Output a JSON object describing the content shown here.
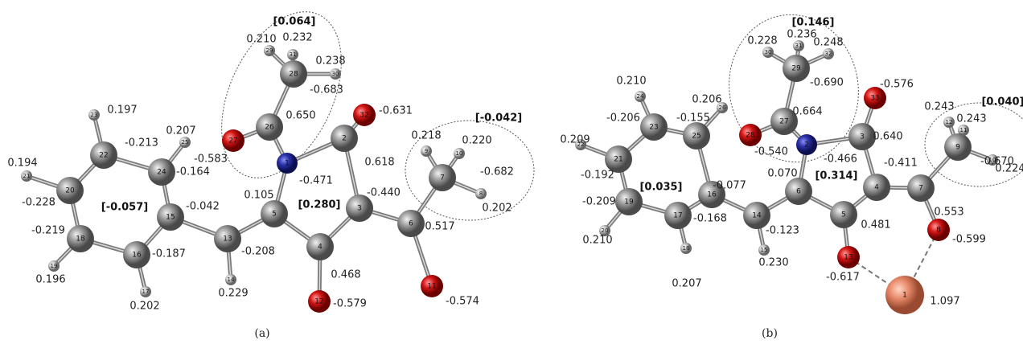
{
  "panels": [
    {
      "caption": "(a)",
      "groups": [
        "[0.064]",
        "[0.280]",
        "[-0.057]",
        "[-0.042]"
      ],
      "atoms": [
        {
          "label": "1",
          "charge": "-0.471"
        },
        {
          "label": "2",
          "charge": "0.618"
        },
        {
          "label": "3",
          "charge": "-0.440"
        },
        {
          "label": "4",
          "charge": "0.468"
        },
        {
          "label": "5",
          "charge": "0.105"
        },
        {
          "label": "6",
          "charge": "0.517"
        },
        {
          "label": "7",
          "charge": "-0.682"
        },
        {
          "label": "8",
          "charge": "0.202"
        },
        {
          "label": "9",
          "charge": "0.218"
        },
        {
          "label": "10",
          "charge": "0.220"
        },
        {
          "label": "11",
          "charge": "-0.574"
        },
        {
          "label": "12",
          "charge": "-0.579"
        },
        {
          "label": "13",
          "charge": "-0.208"
        },
        {
          "label": "14",
          "charge": "0.229"
        },
        {
          "label": "15",
          "charge": "-0.042"
        },
        {
          "label": "16",
          "charge": "-0.187"
        },
        {
          "label": "17",
          "charge": "0.202"
        },
        {
          "label": "18",
          "charge": "-0.219"
        },
        {
          "label": "19",
          "charge": "0.196"
        },
        {
          "label": "20",
          "charge": "-0.228"
        },
        {
          "label": "21",
          "charge": "0.194"
        },
        {
          "label": "22",
          "charge": "-0.213"
        },
        {
          "label": "23",
          "charge": "0.197"
        },
        {
          "label": "24",
          "charge": "-0.164"
        },
        {
          "label": "25",
          "charge": "0.207"
        },
        {
          "label": "26",
          "charge": "0.650"
        },
        {
          "label": "27",
          "charge": "-0.583"
        },
        {
          "label": "28",
          "charge": "-0.683"
        },
        {
          "label": "29",
          "charge": "0.210"
        },
        {
          "label": "30",
          "charge": "0.238"
        },
        {
          "label": "31",
          "charge": "0.232"
        },
        {
          "label": "32",
          "charge": "-0.631"
        }
      ]
    },
    {
      "caption": "(b)",
      "groups": [
        "[0.146]",
        "[0.314]",
        "[0.035]",
        "[0.040]"
      ],
      "atoms": [
        {
          "label": "1",
          "charge": "1.097"
        },
        {
          "label": "2",
          "charge": "-0.466"
        },
        {
          "label": "3",
          "charge": "0.640"
        },
        {
          "label": "4",
          "charge": "-0.411"
        },
        {
          "label": "5",
          "charge": "0.481"
        },
        {
          "label": "6",
          "charge": "0.070"
        },
        {
          "label": "7",
          "charge": "0.553"
        },
        {
          "label": "8",
          "charge": "-0.599"
        },
        {
          "label": "9",
          "charge": "-0.670"
        },
        {
          "label": "10",
          "charge": "0.224"
        },
        {
          "label": "11",
          "charge": "0.243"
        },
        {
          "label": "12",
          "charge": "0.243"
        },
        {
          "label": "13",
          "charge": "-0.617"
        },
        {
          "label": "14",
          "charge": "-0.123"
        },
        {
          "label": "15",
          "charge": "0.230"
        },
        {
          "label": "16",
          "charge": "-0.077"
        },
        {
          "label": "17",
          "charge": "-0.168"
        },
        {
          "label": "18",
          "charge": "0.207"
        },
        {
          "label": "19",
          "charge": "-0.209"
        },
        {
          "label": "20",
          "charge": "0.210"
        },
        {
          "label": "21",
          "charge": "-0.192"
        },
        {
          "label": "22",
          "charge": "0.209"
        },
        {
          "label": "23",
          "charge": "-0.206"
        },
        {
          "label": "24",
          "charge": "0.210"
        },
        {
          "label": "25",
          "charge": "-0.155"
        },
        {
          "label": "26",
          "charge": "0.206"
        },
        {
          "label": "27",
          "charge": "0.664"
        },
        {
          "label": "28",
          "charge": "-0.540"
        },
        {
          "label": "29",
          "charge": "-0.690"
        },
        {
          "label": "30",
          "charge": "0.228"
        },
        {
          "label": "31",
          "charge": "0.236"
        },
        {
          "label": "32",
          "charge": "0.248"
        },
        {
          "label": "33",
          "charge": "-0.576"
        }
      ]
    }
  ]
}
